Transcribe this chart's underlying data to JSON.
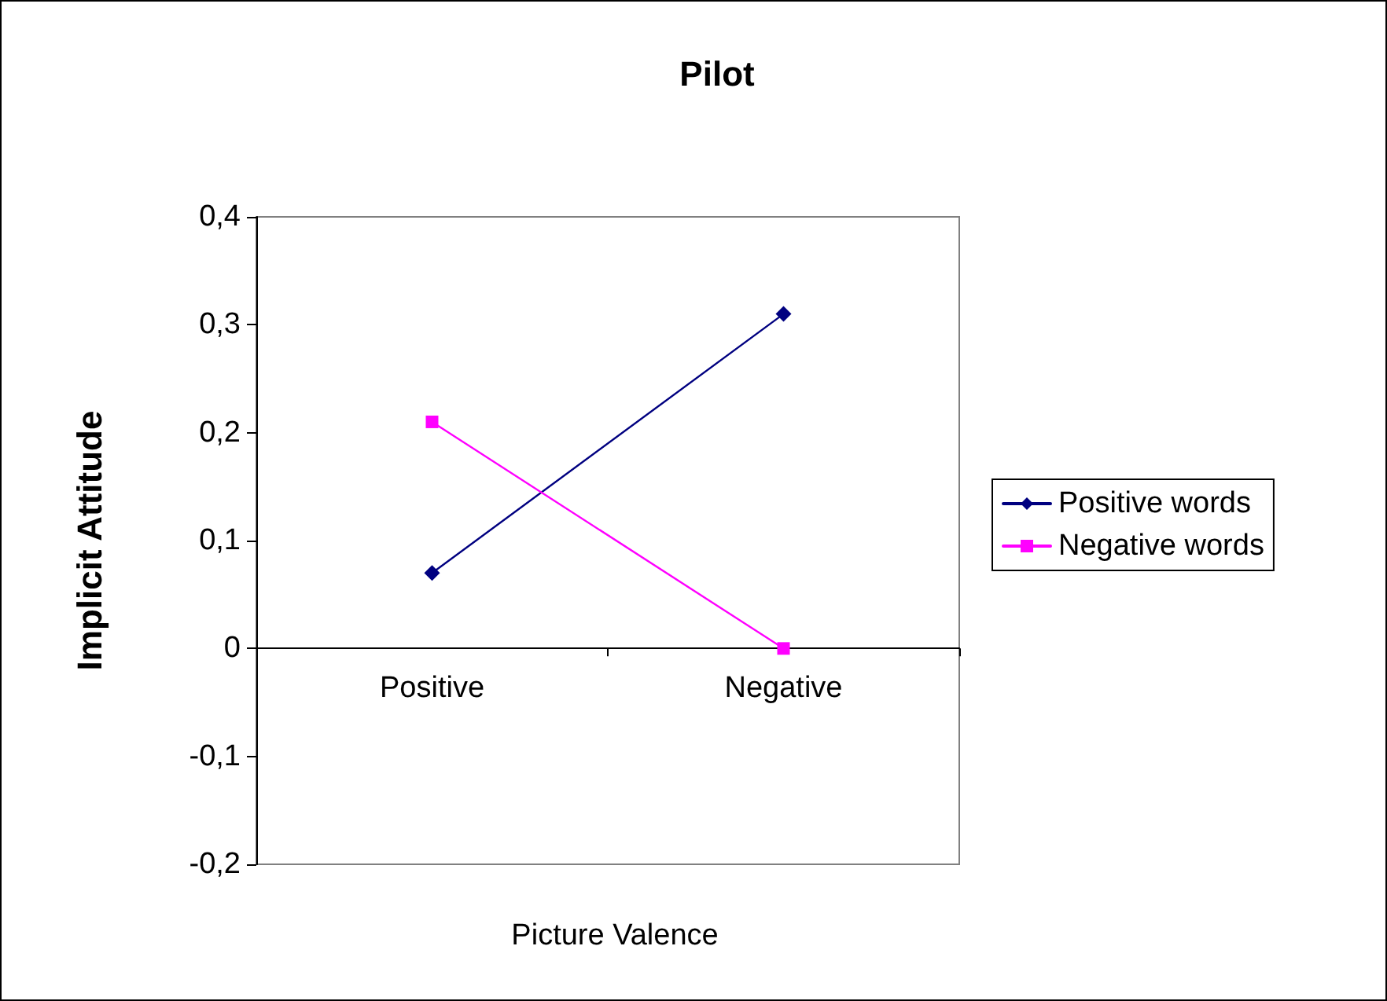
{
  "chart_data": {
    "type": "line",
    "title": "Pilot",
    "xlabel": "Picture Valence",
    "ylabel": "Implicit Attitude",
    "categories": [
      "Positive",
      "Negative"
    ],
    "series": [
      {
        "name": "Positive words",
        "color": "#000080",
        "values": [
          0.07,
          0.31
        ],
        "marker": "diamond"
      },
      {
        "name": "Negative words",
        "color": "#ff00ff",
        "values": [
          0.21,
          0
        ],
        "marker": "square"
      }
    ],
    "ylim": [
      -0.2,
      0.4
    ],
    "yticks": [
      {
        "value": -0.2,
        "label": "-0,2"
      },
      {
        "value": -0.1,
        "label": "-0,1"
      },
      {
        "value": 0,
        "label": "0"
      },
      {
        "value": 0.1,
        "label": "0,1"
      },
      {
        "value": 0.2,
        "label": "0,2"
      },
      {
        "value": 0.3,
        "label": "0,3"
      },
      {
        "value": 0.4,
        "label": "0,4"
      }
    ],
    "legend": "right",
    "line_style": "solid"
  }
}
